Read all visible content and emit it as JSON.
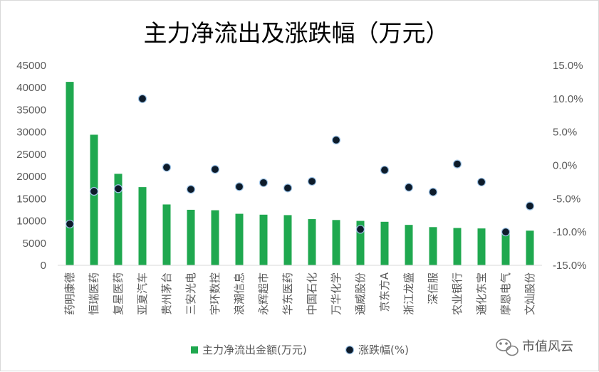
{
  "chart_data": {
    "type": "bar",
    "title": "主力净流出及涨跌幅（万元）",
    "categories": [
      "药明康德",
      "恒瑞医药",
      "复星医药",
      "亚夏汽车",
      "贵州茅台",
      "三安光电",
      "宇环数控",
      "浪潮信息",
      "永辉超市",
      "华东医药",
      "中国石化",
      "万华化学",
      "通威股份",
      "京东方A",
      "浙江龙盛",
      "深信服",
      "农业银行",
      "通化东宝",
      "摩恩电气",
      "文灿股份"
    ],
    "series": [
      {
        "name": "主力净流出金额(万元)",
        "type": "bar",
        "axis": "left",
        "color": "#1fa84f",
        "values": [
          41300,
          29400,
          20600,
          17600,
          13700,
          12500,
          12400,
          11600,
          11400,
          11300,
          10400,
          10200,
          10000,
          9800,
          9100,
          8600,
          8400,
          8300,
          8000,
          7800
        ]
      },
      {
        "name": "涨跌幅(%)",
        "type": "scatter",
        "axis": "right",
        "color": "#0d1b2a",
        "values": [
          -8.8,
          -3.9,
          -3.5,
          10.0,
          -0.3,
          -3.6,
          -0.6,
          -3.2,
          -2.6,
          -3.4,
          -2.4,
          3.8,
          -9.6,
          -0.7,
          -3.3,
          -4.0,
          0.2,
          -2.5,
          -10.0,
          -6.1
        ]
      }
    ],
    "y_left": {
      "min": 0,
      "max": 45000,
      "step": 5000,
      "ticks": [
        "0",
        "5000",
        "10000",
        "15000",
        "20000",
        "25000",
        "30000",
        "35000",
        "40000",
        "45000"
      ]
    },
    "y_right": {
      "min": -15,
      "max": 15,
      "step": 5,
      "ticks": [
        "-15.0%",
        "-10.0%",
        "-5.0%",
        "0.0%",
        "5.0%",
        "10.0%",
        "15.0%"
      ]
    },
    "legend": {
      "position": "bottom",
      "bar_label": "主力净流出金额(万元)",
      "point_label": "涨跌幅(%)"
    },
    "grid": false
  },
  "watermark": {
    "icon": "wechat-icon",
    "text": "市值风云"
  }
}
